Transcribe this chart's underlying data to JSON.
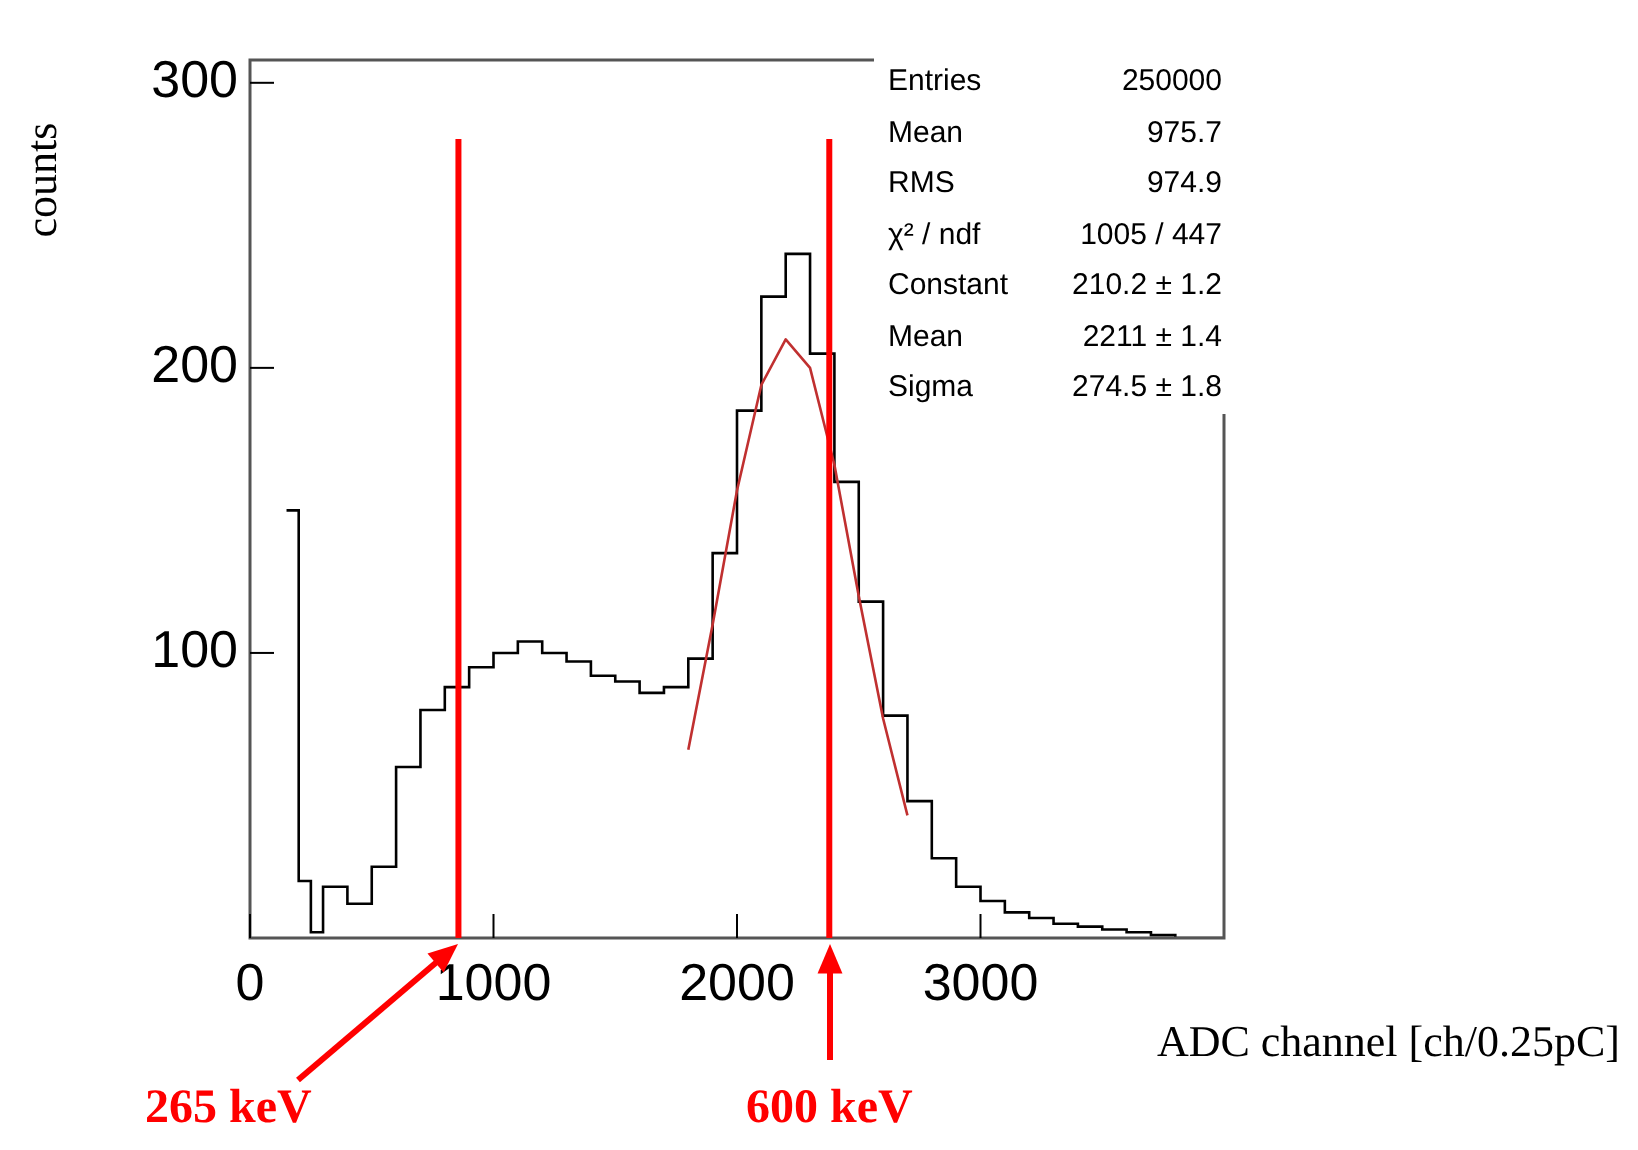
{
  "chart_data": {
    "type": "histogram",
    "xlabel": "ADC channel [ch/0.25pC]",
    "ylabel": "counts",
    "xlim": [
      0,
      4000
    ],
    "ylim": [
      0,
      308
    ],
    "xticks": [
      0,
      1000,
      2000,
      3000
    ],
    "yticks": [
      100,
      200,
      300
    ],
    "legend": false,
    "grid": false,
    "marker": "none",
    "series": [
      {
        "color": "#000000",
        "bins": [
          150,
          200,
          250,
          300,
          400,
          500,
          600,
          700,
          800,
          900,
          1000,
          1100,
          1200,
          1300,
          1400,
          1500,
          1600,
          1700,
          1800,
          1900,
          2000,
          2100,
          2200,
          2300,
          2400,
          2500,
          2600,
          2700,
          2800,
          2900,
          3000,
          3100,
          3200,
          3300,
          3400,
          3500,
          3600,
          3700,
          3800,
          3900,
          4000
        ],
        "values": [
          150,
          20,
          2,
          18,
          12,
          25,
          60,
          80,
          88,
          95,
          100,
          104,
          100,
          97,
          92,
          90,
          86,
          88,
          98,
          135,
          185,
          225,
          240,
          205,
          160,
          118,
          78,
          48,
          28,
          18,
          13,
          9,
          7,
          5,
          4,
          3,
          2,
          1,
          0,
          0
        ]
      },
      {
        "type": "line",
        "color": "#c03030",
        "x": [
          1800,
          1900,
          2000,
          2100,
          2200,
          2300,
          2400,
          2500,
          2600,
          2700
        ],
        "values": [
          66,
          110,
          157,
          194,
          210,
          200,
          166,
          120,
          77,
          43
        ]
      }
    ],
    "ref_lines": [
      {
        "axis": "x",
        "value": 856,
        "label": "265 keV",
        "color": "#ff0000"
      },
      {
        "axis": "x",
        "value": 2379,
        "label": "600 keV",
        "color": "#ff0000"
      }
    ],
    "annotations": [
      "Entries",
      "250000",
      "Mean",
      "975.7",
      "RMS",
      "974.9",
      "χ² / ndf",
      "1005 / 447",
      "Constant",
      "210.2 ± 1.2",
      "Mean",
      "2211 ± 1.4",
      "Sigma",
      "274.5 ± 1.8"
    ]
  }
}
